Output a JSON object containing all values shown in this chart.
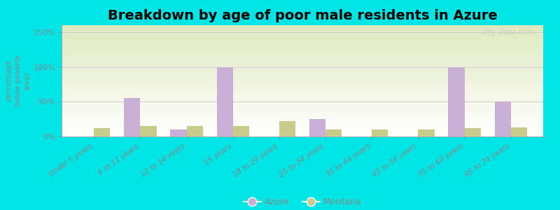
{
  "title": "Breakdown by age of poor male residents in Azure",
  "categories": [
    "Under 5 years",
    "6 to 11 years",
    "12 to 14 years",
    "15 years",
    "18 to 24 years",
    "25 to 34 years",
    "35 to 44 years",
    "45 to 54 years",
    "55 to 64 years",
    "65 to 74 years"
  ],
  "azure_values": [
    0,
    55,
    10,
    100,
    0,
    25,
    0,
    0,
    100,
    50
  ],
  "montana_values": [
    12,
    15,
    15,
    15,
    22,
    10,
    10,
    10,
    12,
    13
  ],
  "azure_color": "#c9aed6",
  "montana_color": "#c8cc8a",
  "background_color": "#00e5e5",
  "ylabel": "percentage\nbelow poverty\nlevel",
  "ylim": [
    0,
    160
  ],
  "yticks": [
    0,
    50,
    100,
    150
  ],
  "ytick_labels": [
    "0%",
    "50%",
    "100%",
    "150%"
  ],
  "title_fontsize": 14,
  "bar_width": 0.35,
  "legend_azure": "Azure",
  "legend_montana": "Montana",
  "watermark": "City-Data.com",
  "grid_color": "#cccccc",
  "text_color": "#888888",
  "plot_bg_color_top": "#f0f4e4",
  "plot_bg_color_bottom": "#ffffff"
}
